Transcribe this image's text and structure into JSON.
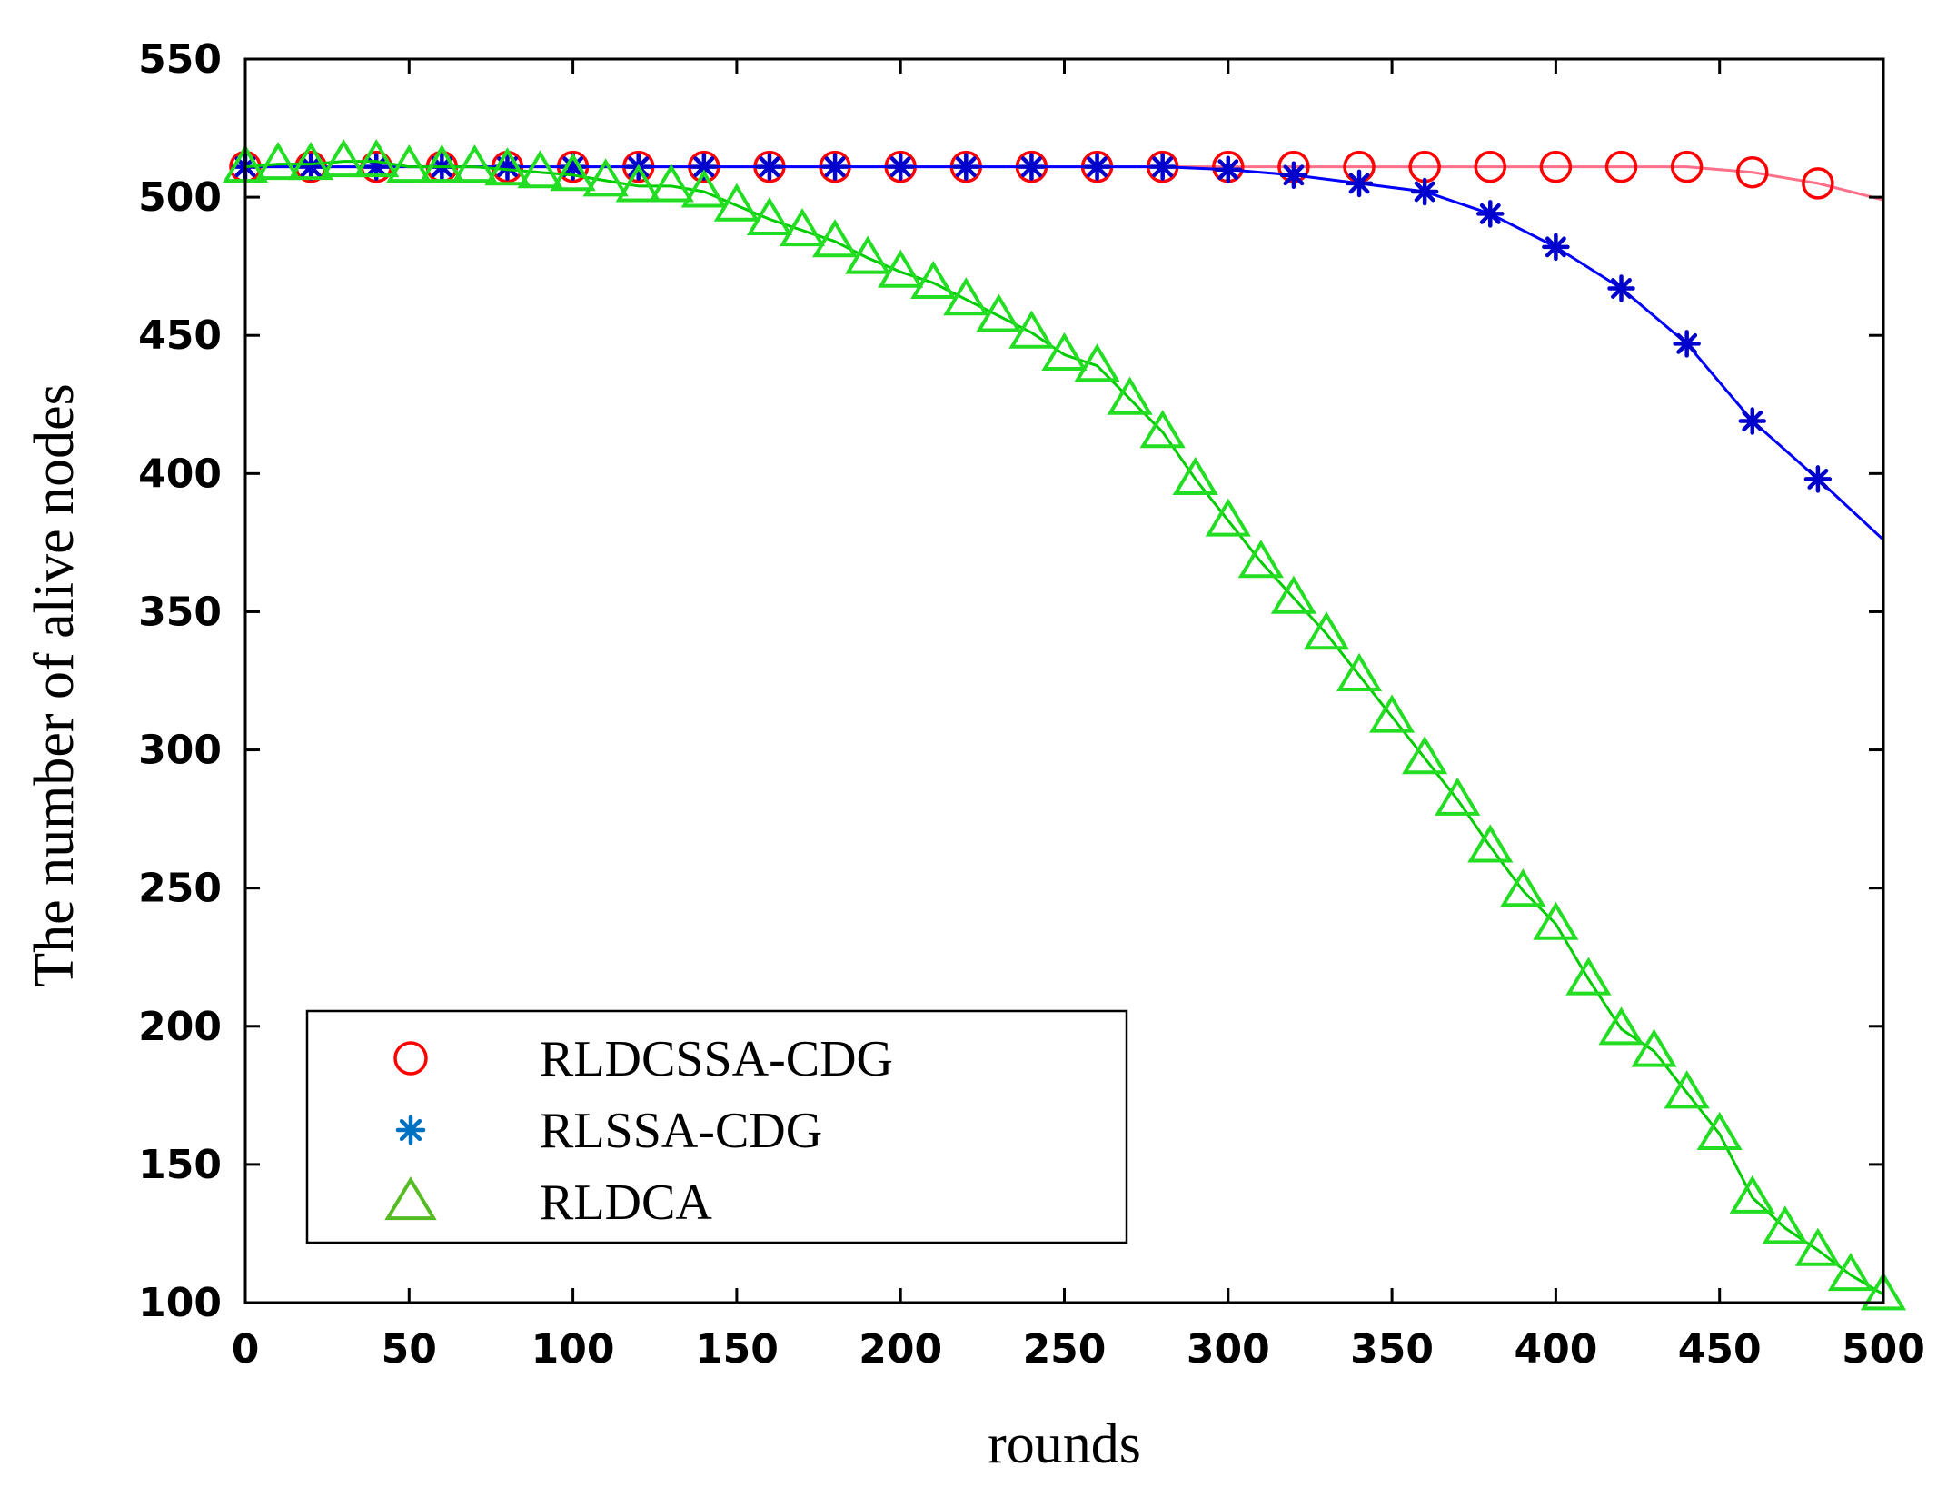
{
  "chart_data": {
    "type": "line",
    "title": "",
    "xlabel": "rounds",
    "ylabel": "The number of alive nodes",
    "xlim": [
      0,
      500
    ],
    "ylim": [
      100,
      550
    ],
    "xticks": [
      0,
      50,
      100,
      150,
      200,
      250,
      300,
      350,
      400,
      450,
      500
    ],
    "yticks": [
      100,
      150,
      200,
      250,
      300,
      350,
      400,
      450,
      500,
      550
    ],
    "grid": false,
    "legend_position": "bottom-left",
    "series": [
      {
        "name": "RLDCSSA-CDG",
        "marker": "circle",
        "line_color": "#ff6f8a",
        "marker_color": "#ff0000",
        "line": {
          "x": [
            0,
            100,
            200,
            300,
            400,
            440,
            450,
            460,
            470,
            480,
            490,
            500
          ],
          "y": [
            511,
            511,
            511,
            511,
            511,
            511,
            510,
            509,
            507,
            505,
            502,
            499
          ]
        },
        "markers": {
          "x": [
            0,
            20,
            40,
            60,
            80,
            100,
            120,
            140,
            160,
            180,
            200,
            220,
            240,
            260,
            280,
            300,
            320,
            340,
            360,
            380,
            400,
            420,
            440,
            460,
            480
          ],
          "y": [
            511,
            511,
            511,
            511,
            511,
            511,
            511,
            511,
            511,
            511,
            511,
            511,
            511,
            511,
            511,
            511,
            511,
            511,
            511,
            511,
            511,
            511,
            511,
            509,
            505
          ]
        }
      },
      {
        "name": "RLSSA-CDG",
        "marker": "star",
        "line_color": "#0000ff",
        "marker_color": "#0000cc",
        "legend_marker_color": "#0070c0",
        "line": {
          "x": [
            0,
            280,
            300,
            320,
            340,
            360,
            380,
            400,
            420,
            440,
            460,
            480,
            500
          ],
          "y": [
            511,
            511,
            510,
            508,
            505,
            502,
            494,
            482,
            467,
            447,
            419,
            398,
            376
          ]
        },
        "markers": {
          "x": [
            0,
            20,
            40,
            60,
            80,
            100,
            120,
            140,
            160,
            180,
            200,
            220,
            240,
            260,
            280,
            300,
            320,
            340,
            360,
            380,
            400,
            420,
            440,
            460,
            480
          ],
          "y": [
            511,
            511,
            511,
            511,
            511,
            511,
            511,
            511,
            511,
            511,
            511,
            511,
            511,
            511,
            511,
            510,
            508,
            505,
            502,
            494,
            482,
            467,
            447,
            419,
            398
          ]
        }
      },
      {
        "name": "RLDCA",
        "marker": "triangle",
        "line_color": "#00cc00",
        "marker_color": "#22dd22",
        "legend_marker_color": "#55bb22",
        "line": {
          "x": [
            0,
            10,
            20,
            30,
            40,
            50,
            60,
            70,
            80,
            90,
            100,
            110,
            120,
            130,
            140,
            150,
            160,
            170,
            180,
            190,
            200,
            210,
            220,
            230,
            240,
            250,
            260,
            270,
            280,
            290,
            300,
            310,
            320,
            330,
            340,
            350,
            360,
            370,
            380,
            390,
            400,
            410,
            420,
            430,
            440,
            450,
            460,
            470,
            480,
            490,
            500
          ],
          "y": [
            511,
            512,
            512,
            513,
            513,
            511,
            511,
            511,
            510,
            509,
            508,
            506,
            504,
            504,
            502,
            497,
            492,
            488,
            484,
            478,
            473,
            469,
            463,
            457,
            451,
            443,
            439,
            427,
            415,
            398,
            383,
            368,
            355,
            342,
            327,
            312,
            297,
            282,
            265,
            249,
            237,
            217,
            199,
            191,
            176,
            161,
            138,
            127,
            119,
            110,
            103
          ]
        },
        "markers": {
          "x": [
            0,
            10,
            20,
            30,
            40,
            50,
            60,
            70,
            80,
            90,
            100,
            110,
            120,
            130,
            140,
            150,
            160,
            170,
            180,
            190,
            200,
            210,
            220,
            230,
            240,
            250,
            260,
            270,
            280,
            290,
            300,
            310,
            320,
            330,
            340,
            350,
            360,
            370,
            380,
            390,
            400,
            410,
            420,
            430,
            440,
            450,
            460,
            470,
            480,
            490,
            500
          ],
          "y": [
            511,
            512,
            512,
            513,
            513,
            511,
            511,
            511,
            510,
            509,
            508,
            506,
            504,
            504,
            502,
            497,
            492,
            488,
            484,
            478,
            473,
            469,
            463,
            457,
            451,
            443,
            439,
            427,
            415,
            398,
            383,
            368,
            355,
            342,
            327,
            312,
            297,
            282,
            265,
            249,
            237,
            217,
            199,
            191,
            176,
            161,
            138,
            127,
            119,
            110,
            103
          ]
        }
      }
    ]
  }
}
